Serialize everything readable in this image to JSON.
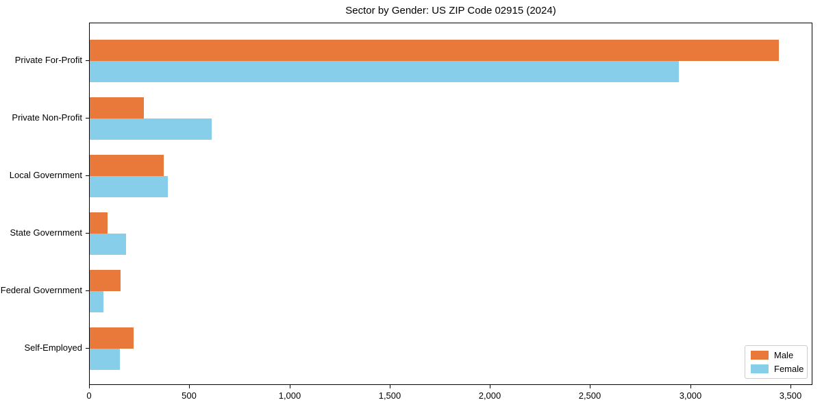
{
  "chart_data": {
    "type": "bar",
    "orientation": "horizontal",
    "title": "Sector by Gender: US ZIP Code 02915 (2024)",
    "categories": [
      "Private For-Profit",
      "Private Non-Profit",
      "Local Government",
      "State Government",
      "Federal Government",
      "Self-Employed"
    ],
    "series": [
      {
        "name": "Male",
        "color": "#E8793B",
        "values": [
          3440,
          270,
          370,
          90,
          155,
          220
        ]
      },
      {
        "name": "Female",
        "color": "#87CEEB",
        "values": [
          2940,
          610,
          390,
          180,
          70,
          150
        ]
      }
    ],
    "xlabel": "",
    "ylabel": "",
    "xlim": [
      0,
      3610
    ],
    "x_ticks": [
      0,
      500,
      1000,
      1500,
      2000,
      2500,
      3000,
      3500
    ],
    "x_tick_labels": [
      "0",
      "500",
      "1,000",
      "1,500",
      "2,000",
      "2,500",
      "3,000",
      "3,500"
    ],
    "legend_position": "lower right",
    "grid": false,
    "colors": {
      "male": "#E8793B",
      "female": "#87CEEB",
      "axis": "#000000",
      "legend_border": "#cccccc",
      "background": "#ffffff"
    }
  }
}
